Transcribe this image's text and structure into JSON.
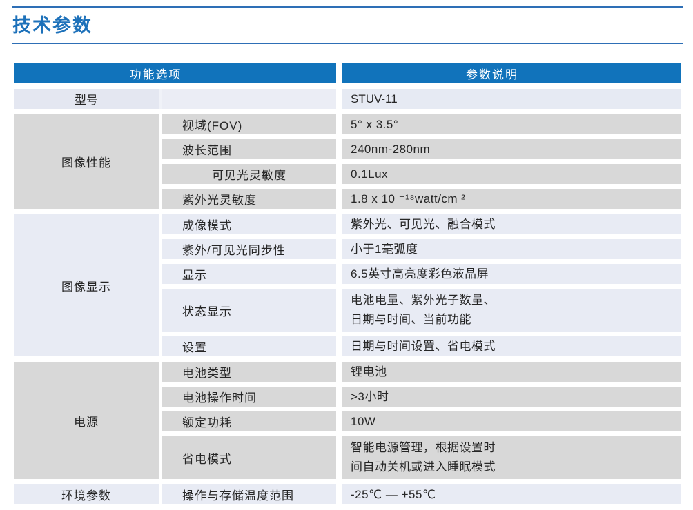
{
  "page": {
    "title": "技术参数"
  },
  "table": {
    "headers": {
      "function": "功能选项",
      "description": "参数说明"
    },
    "model_row": {
      "label": "型号",
      "value": "STUV-11"
    },
    "groups": [
      {
        "name": "图像性能",
        "tone": "gray",
        "rows": [
          {
            "label": "视域(FOV)",
            "value": "5° x 3.5°"
          },
          {
            "label": "波长范围",
            "value": "240nm-280nm"
          },
          {
            "label": "可见光灵敏度",
            "value": "0.1Lux",
            "label_centered": true
          },
          {
            "label": "紫外光灵敏度",
            "value": "1.8 x 10 ⁻¹⁸watt/cm ²"
          }
        ]
      },
      {
        "name": "图像显示",
        "tone": "blue",
        "rows": [
          {
            "label": "成像模式",
            "value": "紫外光、可见光、融合模式"
          },
          {
            "label": "紫外/可见光同步性",
            "value": "小于1毫弧度"
          },
          {
            "label": "显示",
            "value": "6.5英寸高亮度彩色液晶屏"
          },
          {
            "label": "状态显示",
            "value": "电池电量、紫外光子数量、\n日期与时间、当前功能"
          },
          {
            "label": "设置",
            "value": "日期与时间设置、省电模式"
          }
        ]
      },
      {
        "name": "电源",
        "tone": "gray",
        "rows": [
          {
            "label": "电池类型",
            "value": "锂电池"
          },
          {
            "label": "电池操作时间",
            "value": ">3小时"
          },
          {
            "label": "额定功耗",
            "value": "10W"
          },
          {
            "label": "省电模式",
            "value": "智能电源管理，根据设置时\n间自动关机或进入睡眠模式"
          }
        ]
      },
      {
        "name": "环境参数",
        "tone": "blue",
        "rows": [
          {
            "label": "操作与存储温度范围",
            "value": "-25℃ — +55℃"
          }
        ]
      }
    ],
    "colors": {
      "header_bg": "#1173bb",
      "title_blue": "#1d71ba",
      "rule_blue": "#2e6fb6",
      "gray_cell": "#d8d8d8",
      "blue_cell": "#e8ebf4"
    }
  }
}
